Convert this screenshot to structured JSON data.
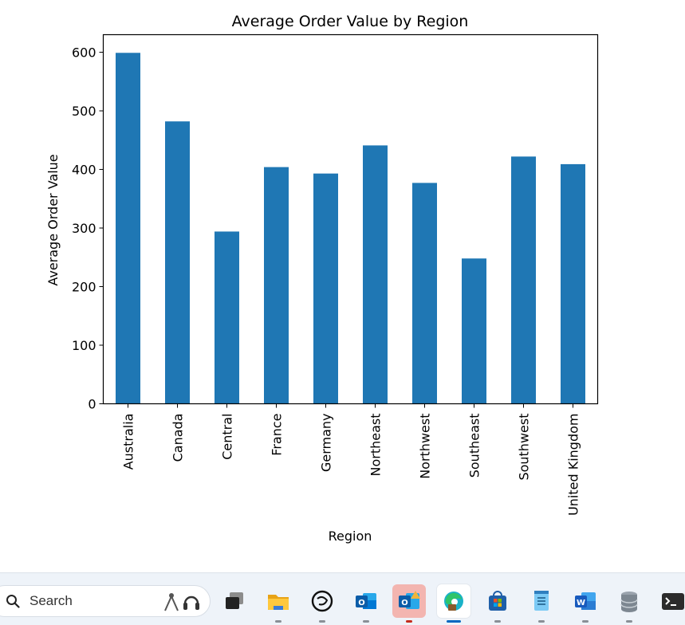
{
  "chart_data": {
    "type": "bar",
    "title": "Average Order Value by Region",
    "xlabel": "Region",
    "ylabel": "Average Order Value",
    "categories": [
      "Australia",
      "Canada",
      "Central",
      "France",
      "Germany",
      "Northeast",
      "Northwest",
      "Southeast",
      "Southwest",
      "United Kingdom"
    ],
    "values": [
      599,
      482,
      294,
      404,
      393,
      441,
      377,
      248,
      422,
      409
    ],
    "ylim": [
      0,
      630
    ],
    "yticks": [
      0,
      100,
      200,
      300,
      400,
      500,
      600
    ],
    "bar_color": "#1f77b4",
    "grid": false,
    "legend": "none"
  },
  "taskbar": {
    "search_label": "Search",
    "search_icon": "search-icon",
    "apps": [
      {
        "name": "task-view",
        "icon": "task-view-icon",
        "running": false
      },
      {
        "name": "file-explorer",
        "icon": "folder-icon",
        "running": true
      },
      {
        "name": "chatgpt",
        "icon": "chatgpt-icon",
        "running": true
      },
      {
        "name": "outlook-new",
        "icon": "outlook-icon",
        "running": true
      },
      {
        "name": "outlook-classic",
        "icon": "outlook-classic-icon",
        "running": true,
        "highlight": "#f3b5b0"
      },
      {
        "name": "edge",
        "icon": "edge-icon",
        "running": true,
        "active": true
      },
      {
        "name": "microsoft-store",
        "icon": "store-icon",
        "running": true
      },
      {
        "name": "notepad",
        "icon": "notepad-icon",
        "running": true
      },
      {
        "name": "word",
        "icon": "word-icon",
        "running": true
      },
      {
        "name": "database",
        "icon": "database-icon",
        "running": true
      },
      {
        "name": "terminal",
        "icon": "terminal-icon",
        "running": true
      }
    ]
  }
}
